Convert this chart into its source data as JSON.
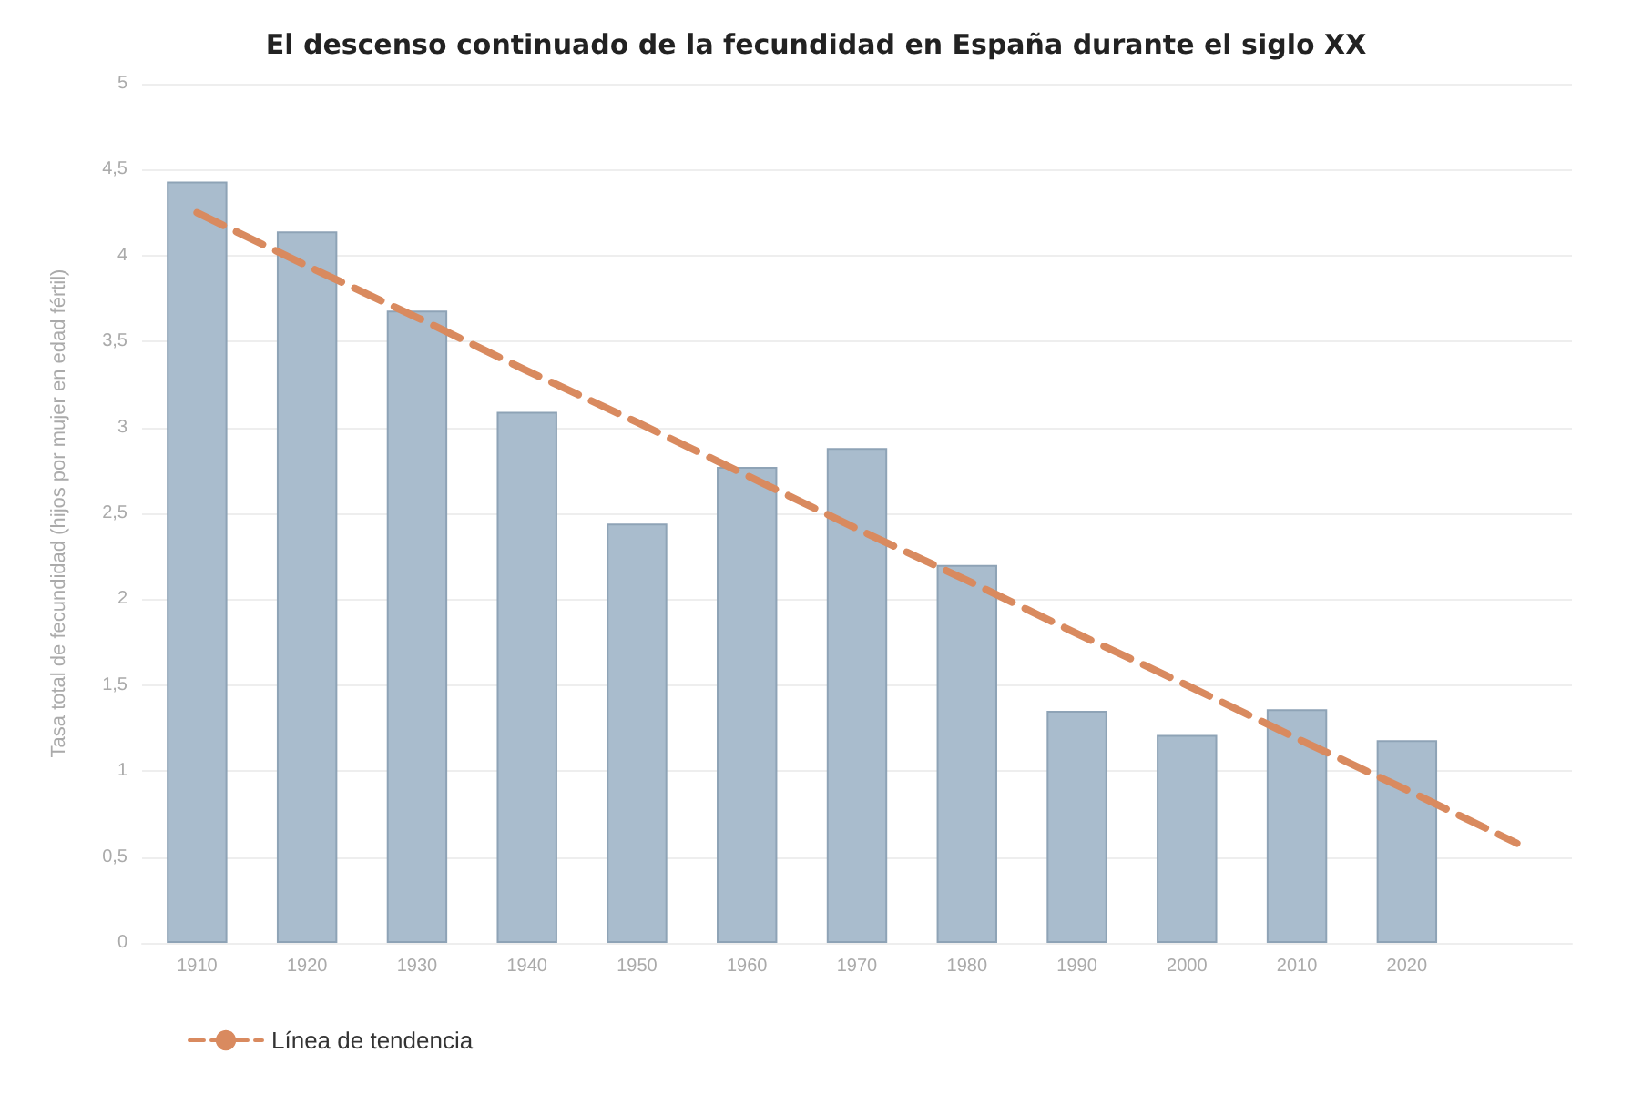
{
  "chart_data": {
    "type": "bar",
    "title": "El descenso continuado de la fecundidad en España durante el siglo XX",
    "ylabel": "Tasa total de fecundidad (hijos por mujer en edad fértil)",
    "categories": [
      "1910",
      "1920",
      "1930",
      "1940",
      "1950",
      "1960",
      "1970",
      "1980",
      "1990",
      "2000",
      "2010",
      "2020",
      null
    ],
    "series": [
      {
        "color": "#a9bccd",
        "values": [
          4.43,
          4.14,
          3.68,
          3.09,
          2.44,
          2.77,
          2.88,
          2.2,
          1.35,
          1.21,
          1.36,
          1.18,
          null
        ]
      },
      {
        "type": "line",
        "name": "Línea de tendencia",
        "color": "#d98a5f",
        "line_style": "dashed",
        "marker": "none",
        "values": [
          4.25,
          3.94,
          3.64,
          3.33,
          3.03,
          2.72,
          2.41,
          2.11,
          1.8,
          1.5,
          1.19,
          0.89,
          0.58
        ]
      }
    ],
    "ylim": [
      0,
      5
    ],
    "yticks": [
      0,
      {
        "value": 0.5,
        "label": "0,5"
      },
      1,
      {
        "value": 1.5,
        "label": "1,5"
      },
      2,
      {
        "value": 2.5,
        "label": "2,5"
      },
      3,
      {
        "value": 3.5,
        "label": "3,5"
      },
      4,
      {
        "value": 4.5,
        "label": "4,5"
      },
      5
    ],
    "grid": "y",
    "legend": "bottom left"
  }
}
